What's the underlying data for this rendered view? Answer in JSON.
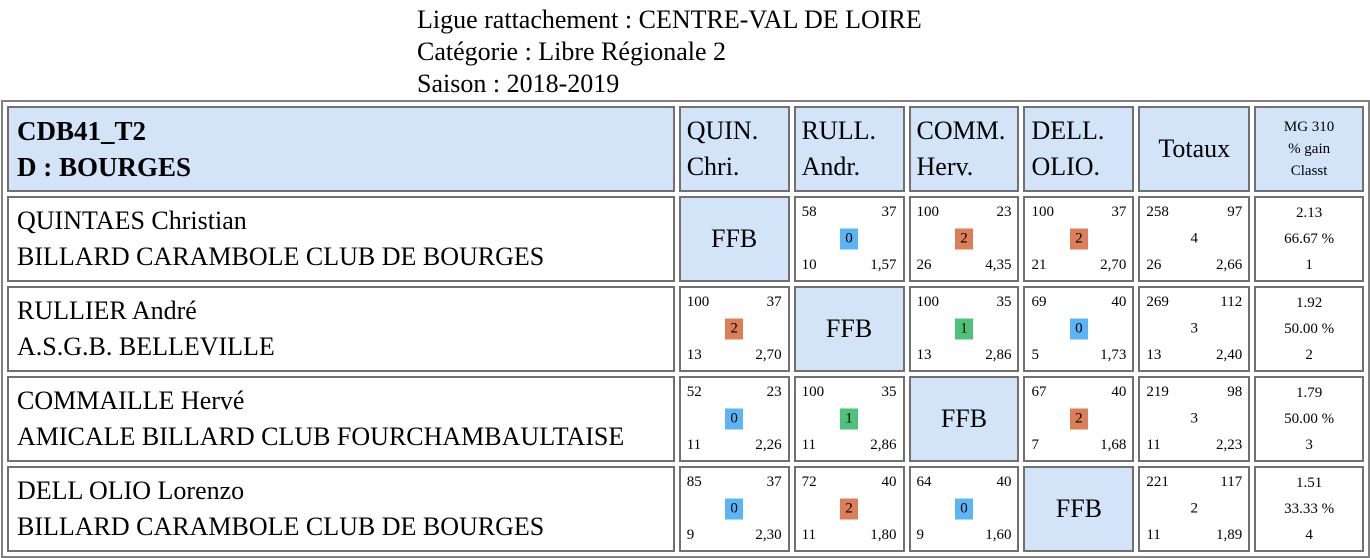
{
  "header": {
    "ligue": "Ligue rattachement : CENTRE-VAL DE LOIRE",
    "categorie": "Catégorie : Libre Régionale 2",
    "saison": "Saison : 2018-2019"
  },
  "table_header": {
    "group": "CDB41_T2",
    "district": "D : BOURGES",
    "opponents": [
      {
        "line1": "QUIN.",
        "line2": "Chri."
      },
      {
        "line1": "RULL.",
        "line2": "Andr."
      },
      {
        "line1": "COMM.",
        "line2": "Herv."
      },
      {
        "line1": "DELL.",
        "line2": "OLIO."
      }
    ],
    "totals": "Totaux",
    "mg_line1": "MG 310",
    "mg_line2": "% gain",
    "mg_line3": "Classt"
  },
  "players": [
    {
      "name": "QUINTAES Christian",
      "club": "BILLARD CARAMBOLE CLUB DE BOURGES",
      "ffb": "FFB",
      "results": [
        null,
        {
          "points": "58",
          "serie": "37",
          "match_pts": "0",
          "reprises": "10",
          "moyenne": "1,57"
        },
        {
          "points": "100",
          "serie": "23",
          "match_pts": "2",
          "reprises": "26",
          "moyenne": "4,35"
        },
        {
          "points": "100",
          "serie": "37",
          "match_pts": "2",
          "reprises": "21",
          "moyenne": "2,70"
        }
      ],
      "totals": {
        "points": "258",
        "serie": "97",
        "match_pts": "4",
        "reprises": "26",
        "moyenne": "2,66"
      },
      "mg": "2.13",
      "pct": "66.67 %",
      "rank": "1"
    },
    {
      "name": "RULLIER André",
      "club": "A.S.G.B. BELLEVILLE",
      "ffb": "FFB",
      "results": [
        {
          "points": "100",
          "serie": "37",
          "match_pts": "2",
          "reprises": "13",
          "moyenne": "2,70"
        },
        null,
        {
          "points": "100",
          "serie": "35",
          "match_pts": "1",
          "reprises": "13",
          "moyenne": "2,86"
        },
        {
          "points": "69",
          "serie": "40",
          "match_pts": "0",
          "reprises": "5",
          "moyenne": "1,73"
        }
      ],
      "totals": {
        "points": "269",
        "serie": "112",
        "match_pts": "3",
        "reprises": "13",
        "moyenne": "2,40"
      },
      "mg": "1.92",
      "pct": "50.00 %",
      "rank": "2"
    },
    {
      "name": "COMMAILLE Hervé",
      "club": "AMICALE BILLARD CLUB FOURCHAMBAULTAISE",
      "ffb": "FFB",
      "results": [
        {
          "points": "52",
          "serie": "23",
          "match_pts": "0",
          "reprises": "11",
          "moyenne": "2,26"
        },
        {
          "points": "100",
          "serie": "35",
          "match_pts": "1",
          "reprises": "11",
          "moyenne": "2,86"
        },
        null,
        {
          "points": "67",
          "serie": "40",
          "match_pts": "2",
          "reprises": "7",
          "moyenne": "1,68"
        }
      ],
      "totals": {
        "points": "219",
        "serie": "98",
        "match_pts": "3",
        "reprises": "11",
        "moyenne": "2,23"
      },
      "mg": "1.79",
      "pct": "50.00 %",
      "rank": "3"
    },
    {
      "name": "DELL OLIO Lorenzo",
      "club": "BILLARD CARAMBOLE CLUB DE BOURGES",
      "ffb": "FFB",
      "results": [
        {
          "points": "85",
          "serie": "37",
          "match_pts": "0",
          "reprises": "9",
          "moyenne": "2,30"
        },
        {
          "points": "72",
          "serie": "40",
          "match_pts": "2",
          "reprises": "11",
          "moyenne": "1,80"
        },
        {
          "points": "64",
          "serie": "40",
          "match_pts": "0",
          "reprises": "9",
          "moyenne": "1,60"
        },
        null
      ],
      "totals": {
        "points": "221",
        "serie": "117",
        "match_pts": "2",
        "reprises": "11",
        "moyenne": "1,89"
      },
      "mg": "1.51",
      "pct": "33.33 %",
      "rank": "4"
    }
  ],
  "colors": {
    "header_bg": "#d3e3f8",
    "pts_0": "#5bb5f5",
    "pts_1": "#4ec27a",
    "pts_2": "#dc7f58"
  }
}
